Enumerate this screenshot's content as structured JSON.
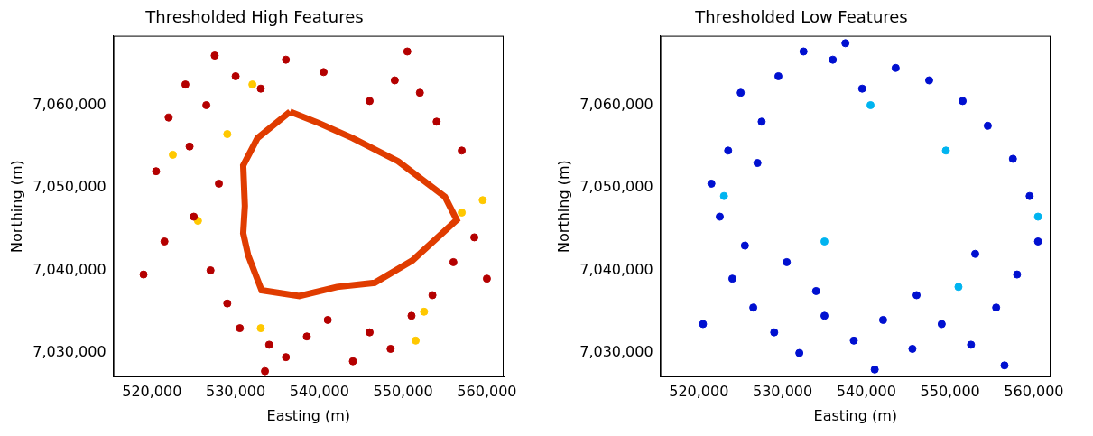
{
  "chart_data": [
    {
      "type": "scatter",
      "title": "Thresholded High Features",
      "x_label": "Easting (m)",
      "y_label": "Northing (m)",
      "xlim": [
        515400,
        562000
      ],
      "ylim": [
        7027100,
        7068400
      ],
      "xticks": [
        {
          "value": 520000,
          "label": "520,000"
        },
        {
          "value": 530000,
          "label": "530,000"
        },
        {
          "value": 540000,
          "label": "540,000"
        },
        {
          "value": 550000,
          "label": "550,000"
        },
        {
          "value": 560000,
          "label": "560,000"
        }
      ],
      "yticks": [
        {
          "value": 7030000,
          "label": "7,030,000"
        },
        {
          "value": 7040000,
          "label": "7,040,000"
        },
        {
          "value": 7050000,
          "label": "7,050,000"
        },
        {
          "value": 7060000,
          "label": "7,060,000"
        }
      ],
      "grid": false,
      "series": [
        {
          "color": "#e03c00",
          "marker": "none",
          "line_style": "solid",
          "x": [
            536500,
            540000,
            544000,
            549400,
            555000,
            556400,
            551100,
            546600,
            542100,
            537600,
            533100,
            531500,
            530900,
            531100,
            530900,
            532600,
            536500
          ],
          "y": [
            7059200,
            7057800,
            7056000,
            7053200,
            7048900,
            7046100,
            7041200,
            7038500,
            7038000,
            7036900,
            7037600,
            7041800,
            7044500,
            7047800,
            7052700,
            7056000,
            7059200
          ]
        },
        {
          "color": "#b40000",
          "marker": "circle",
          "line_style": "none",
          "x": [
            522000,
            524500,
            526500,
            528000,
            525000,
            521500,
            527000,
            529000,
            530500,
            534000,
            536000,
            538500,
            541000,
            546000,
            548500,
            551000,
            553500,
            556000,
            558500,
            560000,
            557000,
            554000,
            552000,
            549000,
            546000,
            540500,
            536000,
            533000,
            530000,
            527500,
            524000,
            520500,
            519000,
            533500,
            544000,
            550500
          ],
          "y": [
            7058500,
            7055000,
            7060000,
            7050500,
            7046500,
            7043500,
            7040000,
            7036000,
            7033000,
            7031000,
            7029500,
            7032000,
            7034000,
            7032500,
            7030500,
            7034500,
            7037000,
            7041000,
            7044000,
            7039000,
            7054500,
            7058000,
            7061500,
            7063000,
            7060500,
            7064000,
            7065500,
            7062000,
            7063500,
            7066000,
            7062500,
            7052000,
            7039500,
            7027800,
            7029000,
            7066500
          ]
        },
        {
          "color": "#ffc800",
          "marker": "circle",
          "line_style": "none",
          "x": [
            551500,
            533000,
            559500,
            522500,
            529000,
            525500,
            557000,
            532000,
            552500
          ],
          "y": [
            7031500,
            7033000,
            7048500,
            7054000,
            7056500,
            7046000,
            7047000,
            7062500,
            7035000
          ]
        }
      ]
    },
    {
      "type": "scatter",
      "title": "Thresholded Low Features",
      "x_label": "Easting (m)",
      "y_label": "Northing (m)",
      "xlim": [
        515400,
        562000
      ],
      "ylim": [
        7027100,
        7068400
      ],
      "xticks": [
        {
          "value": 520000,
          "label": "520,000"
        },
        {
          "value": 530000,
          "label": "530,000"
        },
        {
          "value": 540000,
          "label": "540,000"
        },
        {
          "value": 550000,
          "label": "550,000"
        },
        {
          "value": 560000,
          "label": "560,000"
        }
      ],
      "yticks": [
        {
          "value": 7030000,
          "label": "7,030,000"
        },
        {
          "value": 7040000,
          "label": "7,040,000"
        },
        {
          "value": 7050000,
          "label": "7,050,000"
        },
        {
          "value": 7060000,
          "label": "7,060,000"
        }
      ],
      "grid": false,
      "series": [
        {
          "color": "#0010d0",
          "marker": "circle",
          "line_style": "none",
          "x": [
            525000,
            527500,
            523500,
            521500,
            522500,
            525500,
            524000,
            526500,
            529000,
            532000,
            535000,
            538500,
            542000,
            545500,
            549000,
            552500,
            555500,
            558000,
            560500,
            559500,
            557500,
            554500,
            551500,
            547500,
            543500,
            539500,
            536000,
            532500,
            529500,
            527000,
            530500,
            534000,
            546000,
            553000,
            520500,
            556500,
            541000,
            537500
          ],
          "y": [
            7061500,
            7058000,
            7054500,
            7050500,
            7046500,
            7043000,
            7039000,
            7035500,
            7032500,
            7030000,
            7034500,
            7031500,
            7034000,
            7030500,
            7033500,
            7031000,
            7035500,
            7039500,
            7043500,
            7049000,
            7053500,
            7057500,
            7060500,
            7063000,
            7064500,
            7062000,
            7065500,
            7066500,
            7063500,
            7053000,
            7041000,
            7037500,
            7037000,
            7042000,
            7033500,
            7028500,
            7028000,
            7067500
          ]
        },
        {
          "color": "#00b4f0",
          "marker": "circle",
          "line_style": "none",
          "x": [
            540500,
            549500,
            560500,
            535000,
            523000,
            551000
          ],
          "y": [
            7060000,
            7054500,
            7046500,
            7043500,
            7049000,
            7038000
          ]
        }
      ]
    }
  ]
}
